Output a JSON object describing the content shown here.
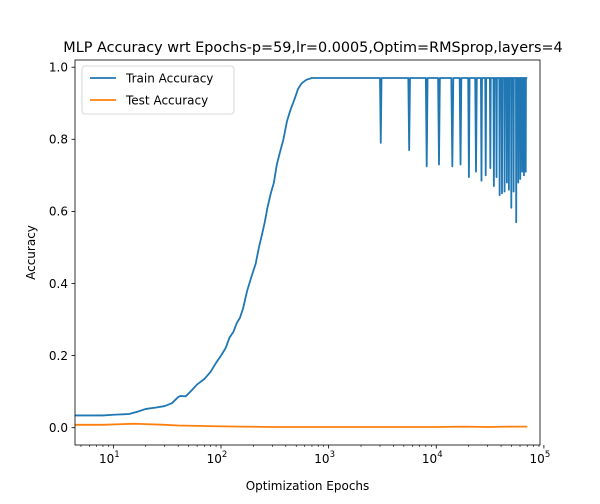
{
  "chart_data": {
    "type": "line",
    "title": "MLP Accuracy wrt Epochs-p=59,lr=0.0005,Optim=RMSprop,layers=4",
    "xlabel": "Optimization Epochs",
    "ylabel": "Accuracy",
    "x_scale": "log",
    "xlim": [
      4.4,
      92000
    ],
    "ylim": [
      -0.048,
      1.02
    ],
    "x_ticks": [
      {
        "value": 10,
        "base": "10",
        "exp": "1"
      },
      {
        "value": 100,
        "base": "10",
        "exp": "2"
      },
      {
        "value": 1000,
        "base": "10",
        "exp": "3"
      },
      {
        "value": 10000,
        "base": "10",
        "exp": "4"
      },
      {
        "value": 100000,
        "base": "10",
        "exp": "5"
      }
    ],
    "y_ticks": [
      {
        "value": 0.0,
        "label": "0.0"
      },
      {
        "value": 0.2,
        "label": "0.2"
      },
      {
        "value": 0.4,
        "label": "0.4"
      },
      {
        "value": 0.6,
        "label": "0.6"
      },
      {
        "value": 0.8,
        "label": "0.8"
      },
      {
        "value": 1.0,
        "label": "1.0"
      }
    ],
    "grid": false,
    "legend_position": "top-left",
    "series": [
      {
        "name": "Train Accuracy",
        "color": "#1f77b4",
        "points": [
          [
            4.4,
            0.034
          ],
          [
            6,
            0.034
          ],
          [
            8,
            0.034
          ],
          [
            10,
            0.036
          ],
          [
            14,
            0.038
          ],
          [
            17,
            0.045
          ],
          [
            20,
            0.052
          ],
          [
            25,
            0.056
          ],
          [
            30,
            0.06
          ],
          [
            35,
            0.068
          ],
          [
            40,
            0.085
          ],
          [
            42,
            0.088
          ],
          [
            47,
            0.087
          ],
          [
            52,
            0.1
          ],
          [
            60,
            0.12
          ],
          [
            70,
            0.135
          ],
          [
            80,
            0.155
          ],
          [
            90,
            0.18
          ],
          [
            100,
            0.2
          ],
          [
            110,
            0.22
          ],
          [
            120,
            0.25
          ],
          [
            130,
            0.265
          ],
          [
            140,
            0.29
          ],
          [
            150,
            0.305
          ],
          [
            160,
            0.33
          ],
          [
            175,
            0.38
          ],
          [
            190,
            0.415
          ],
          [
            210,
            0.455
          ],
          [
            225,
            0.5
          ],
          [
            240,
            0.535
          ],
          [
            255,
            0.57
          ],
          [
            270,
            0.61
          ],
          [
            290,
            0.65
          ],
          [
            310,
            0.68
          ],
          [
            330,
            0.73
          ],
          [
            350,
            0.76
          ],
          [
            380,
            0.8
          ],
          [
            410,
            0.85
          ],
          [
            440,
            0.88
          ],
          [
            480,
            0.91
          ],
          [
            520,
            0.94
          ],
          [
            560,
            0.955
          ],
          [
            620,
            0.965
          ],
          [
            700,
            0.97
          ],
          [
            1000,
            0.97
          ],
          [
            3000,
            0.97
          ],
          [
            3050,
            0.79
          ],
          [
            3100,
            0.97
          ],
          [
            5500,
            0.97
          ],
          [
            5600,
            0.77
          ],
          [
            5700,
            0.97
          ],
          [
            8000,
            0.97
          ],
          [
            8150,
            0.725
          ],
          [
            8300,
            0.97
          ],
          [
            10400,
            0.97
          ],
          [
            10600,
            0.73
          ],
          [
            10800,
            0.97
          ],
          [
            13800,
            0.97
          ],
          [
            14100,
            0.725
          ],
          [
            14400,
            0.97
          ],
          [
            16500,
            0.97
          ],
          [
            16800,
            0.73
          ],
          [
            17100,
            0.97
          ],
          [
            19800,
            0.97
          ],
          [
            20100,
            0.695
          ],
          [
            20400,
            0.97
          ],
          [
            23000,
            0.97
          ],
          [
            23400,
            0.71
          ],
          [
            23800,
            0.97
          ],
          [
            26000,
            0.97
          ],
          [
            26300,
            0.685
          ],
          [
            26600,
            0.97
          ],
          [
            28500,
            0.97
          ],
          [
            28800,
            0.7
          ],
          [
            29100,
            0.97
          ],
          [
            31500,
            0.97
          ],
          [
            31800,
            0.72
          ],
          [
            32100,
            0.97
          ],
          [
            34000,
            0.97
          ],
          [
            34300,
            0.67
          ],
          [
            34600,
            0.97
          ],
          [
            36000,
            0.97
          ],
          [
            36300,
            0.695
          ],
          [
            36600,
            0.97
          ],
          [
            38500,
            0.97
          ],
          [
            38800,
            0.645
          ],
          [
            39100,
            0.97
          ],
          [
            40500,
            0.97
          ],
          [
            40800,
            0.65
          ],
          [
            41100,
            0.97
          ],
          [
            42800,
            0.97
          ],
          [
            43100,
            0.655
          ],
          [
            43400,
            0.97
          ],
          [
            45000,
            0.97
          ],
          [
            45300,
            0.68
          ],
          [
            45600,
            0.97
          ],
          [
            47000,
            0.97
          ],
          [
            47300,
            0.66
          ],
          [
            47600,
            0.97
          ],
          [
            49500,
            0.97
          ],
          [
            49800,
            0.61
          ],
          [
            50100,
            0.97
          ],
          [
            52000,
            0.97
          ],
          [
            52300,
            0.655
          ],
          [
            52600,
            0.97
          ],
          [
            55000,
            0.97
          ],
          [
            55300,
            0.57
          ],
          [
            55600,
            0.97
          ],
          [
            57500,
            0.97
          ],
          [
            57800,
            0.68
          ],
          [
            58100,
            0.97
          ],
          [
            60000,
            0.97
          ],
          [
            60300,
            0.69
          ],
          [
            60600,
            0.97
          ],
          [
            62500,
            0.97
          ],
          [
            62800,
            0.71
          ],
          [
            63100,
            0.97
          ],
          [
            65000,
            0.97
          ],
          [
            65300,
            0.7
          ],
          [
            65600,
            0.97
          ],
          [
            67500,
            0.97
          ],
          [
            67800,
            0.71
          ],
          [
            68100,
            0.97
          ],
          [
            70000,
            0.97
          ]
        ]
      },
      {
        "name": "Test Accuracy",
        "color": "#ff7f0e",
        "points": [
          [
            4.4,
            0.008
          ],
          [
            8,
            0.008
          ],
          [
            12,
            0.01
          ],
          [
            16,
            0.011
          ],
          [
            20,
            0.01
          ],
          [
            30,
            0.008
          ],
          [
            40,
            0.006
          ],
          [
            60,
            0.005
          ],
          [
            90,
            0.004
          ],
          [
            150,
            0.003
          ],
          [
            300,
            0.002
          ],
          [
            700,
            0.002
          ],
          [
            1500,
            0.002
          ],
          [
            3000,
            0.002
          ],
          [
            6000,
            0.002
          ],
          [
            10000,
            0.002
          ],
          [
            18000,
            0.003
          ],
          [
            30000,
            0.002
          ],
          [
            50000,
            0.003
          ],
          [
            70000,
            0.003
          ]
        ]
      }
    ]
  }
}
